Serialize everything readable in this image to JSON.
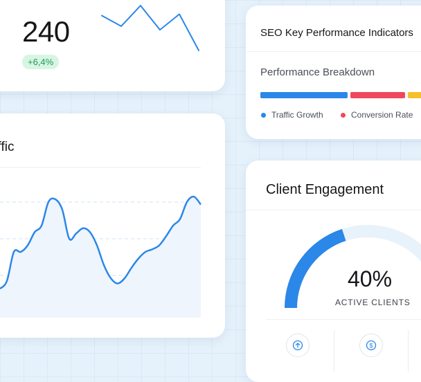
{
  "stat": {
    "value": "240",
    "change": "+6,4%",
    "trend": [
      22,
      7,
      36,
      2,
      24,
      -27
    ]
  },
  "traffic": {
    "title": "affic",
    "trend": [
      88,
      82,
      60,
      60,
      55,
      45,
      40,
      22,
      20,
      28,
      50,
      46,
      42,
      45,
      55,
      70,
      80,
      84,
      80,
      72,
      65,
      60,
      58,
      55,
      48,
      40,
      35,
      22,
      18,
      24
    ]
  },
  "seo": {
    "title": "SEO Key Performance Indicators",
    "subtitle": "Performance Breakdown",
    "breakdown": [
      {
        "name": "Traffic Growth",
        "color": "#2b87e8",
        "share": 48
      },
      {
        "name": "Conversion Rate",
        "color": "#f0485b",
        "share": 31
      },
      {
        "name": "",
        "color": "#f6c02c",
        "share": 21
      }
    ]
  },
  "engagement": {
    "title": "Client Engagement",
    "value": "40%",
    "percent": 40,
    "label": "ACTIVE CLIENTS",
    "actions": [
      {
        "icon": "arrow-up-circle-icon"
      },
      {
        "icon": "dollar-circle-icon"
      }
    ]
  },
  "colors": {
    "accent": "#2b87e8",
    "positive": "#1f9b59",
    "positive_bg": "#d8f5e4"
  }
}
